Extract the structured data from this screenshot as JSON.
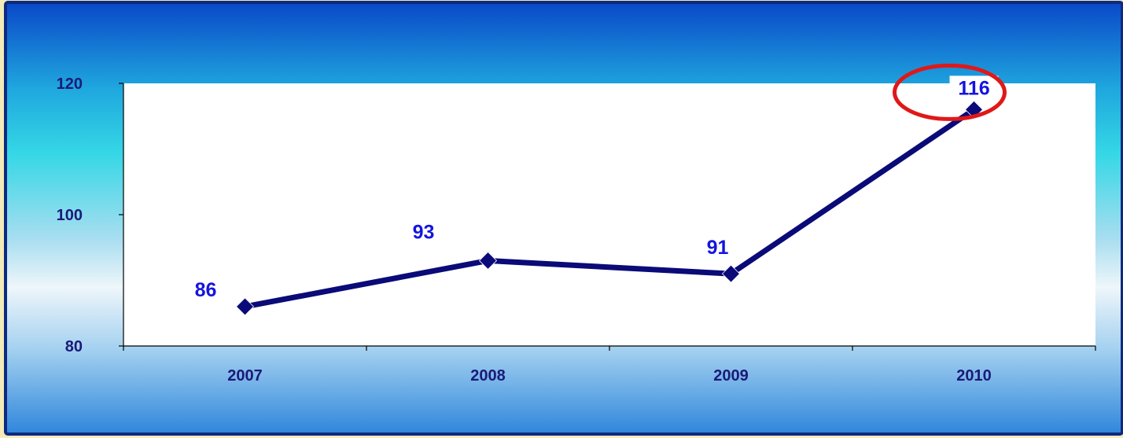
{
  "colors": {
    "page_background": "#f3ebb8",
    "panel_border": "#0d2a80",
    "plot_background": "#ffffff",
    "line": "#0a0a78",
    "marker": "#0a0a78",
    "data_label": "#1414e0",
    "tick_label": "#1a1a78",
    "highlight_ring": "#e01818"
  },
  "chart_data": {
    "type": "line",
    "title": "",
    "xlabel": "",
    "ylabel": "",
    "categories": [
      "2007",
      "2008",
      "2009",
      "2010"
    ],
    "series": [
      {
        "values": [
          86,
          93,
          91,
          116
        ],
        "labels": [
          "86",
          "93",
          "91",
          "116"
        ]
      }
    ],
    "ylim": [
      80,
      120
    ],
    "yticks": [
      80,
      100,
      120
    ],
    "ytick_labels": [
      "80",
      "100",
      "120"
    ],
    "grid": false,
    "legend": "none",
    "marker": "diamond",
    "highlight": {
      "category": "2010",
      "shape": "ellipse"
    }
  }
}
